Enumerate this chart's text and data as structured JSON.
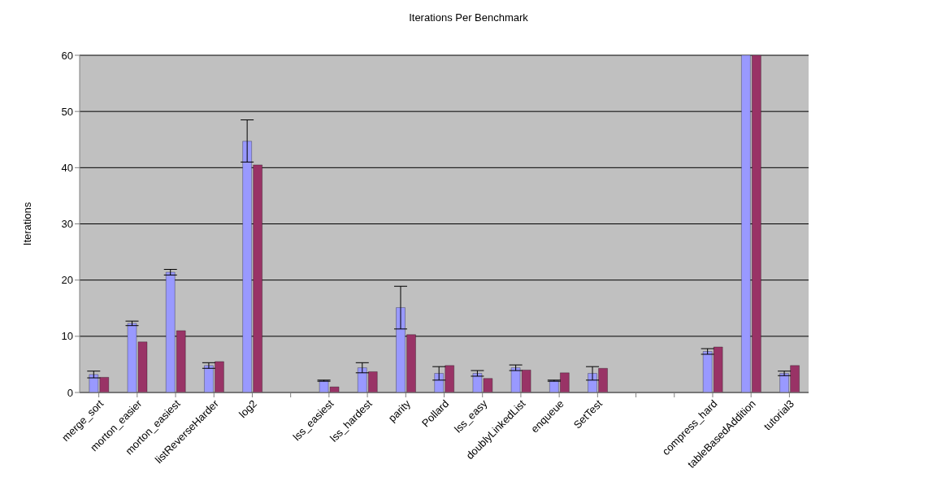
{
  "chart_data": {
    "type": "bar",
    "title": "Iterations Per Benchmark",
    "ylabel": "Iterations",
    "categories": [
      "merge_sort",
      "morton_easier",
      "morton_easiest",
      "listReverseHarder",
      "log2",
      null,
      "lss_easiest",
      "lss_hardest",
      "parity",
      "Pollard",
      "lss_easy",
      "doublyLinkedList",
      "enqueue",
      "SetTest",
      null,
      null,
      "compress_hard",
      "tableBasedAddition",
      "tutorial3"
    ],
    "series": [
      {
        "color": "#9999ff",
        "values": [
          3.2,
          12.3,
          21.4,
          4.8,
          44.7,
          null,
          2.1,
          4.4,
          15.1,
          3.4,
          3.4,
          4.4,
          2.1,
          3.4,
          null,
          null,
          7.3,
          60,
          3.4
        ],
        "errors": [
          0.6,
          0.4,
          0.5,
          0.5,
          [
            41,
            48.5
          ],
          null,
          0.1,
          [
            3.5,
            5.3
          ],
          [
            11.3,
            18.9
          ],
          [
            2.2,
            4.6
          ],
          0.5,
          0.5,
          0.1,
          [
            2.2,
            4.6
          ],
          null,
          null,
          0.5,
          null,
          0.4
        ]
      },
      {
        "color": "#993366",
        "values": [
          2.7,
          9.0,
          11.0,
          5.5,
          40.5,
          null,
          1.0,
          3.7,
          10.3,
          4.8,
          2.5,
          4.0,
          3.5,
          4.3,
          null,
          null,
          8.1,
          60,
          4.8
        ]
      }
    ],
    "ylim": [
      0,
      60
    ],
    "yticks": [
      0,
      10,
      20,
      30,
      40,
      50,
      60
    ],
    "grid": "y"
  }
}
